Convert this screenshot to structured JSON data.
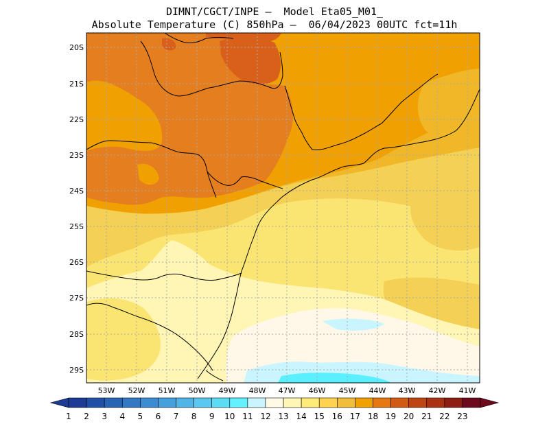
{
  "header": {
    "line1": "DIMNT/CGCT/INPE –  Model Eta05_M01_",
    "line2": "Absolute Temperature (C) 850hPa –  06/04/2023 00UTC fct=11h"
  },
  "axes": {
    "lat_labels": [
      "20S",
      "21S",
      "22S",
      "23S",
      "24S",
      "25S",
      "26S",
      "27S",
      "28S",
      "29S"
    ],
    "lon_labels": [
      "53W",
      "52W",
      "51W",
      "50W",
      "49W",
      "48W",
      "47W",
      "46W",
      "45W",
      "44W",
      "43W",
      "42W",
      "41W"
    ]
  },
  "colorbar": {
    "labels": [
      "1",
      "2",
      "3",
      "4",
      "5",
      "6",
      "7",
      "8",
      "9",
      "10",
      "11",
      "12",
      "13",
      "14",
      "15",
      "16",
      "17",
      "18",
      "19",
      "20",
      "21",
      "22",
      "23"
    ],
    "colors": [
      "#1e3c96",
      "#1e50a8",
      "#2864b4",
      "#3278c3",
      "#3c8cd2",
      "#46a0dc",
      "#50b4e6",
      "#5ac8f0",
      "#5adcf5",
      "#64f0ff",
      "#c8f5ff",
      "#fffae6",
      "#fff5b4",
      "#ffeb78",
      "#ffd250",
      "#f0be3c",
      "#f0a000",
      "#e67814",
      "#d25a14",
      "#be4614",
      "#aa3214",
      "#8c1e14",
      "#6e0a1e"
    ],
    "arrow_left": "#1e3c96",
    "arrow_right": "#6e0a1e"
  },
  "field_colors": {
    "t12": "#fff8e8",
    "t13": "#fff5b4",
    "t14": "#fbe572",
    "t15": "#f4d054",
    "t16": "#f0b828",
    "t17": "#f0a000",
    "t18": "#e47e1e",
    "t19": "#d8601a",
    "t11": "#c8f5ff",
    "t10": "#5af0ff"
  }
}
